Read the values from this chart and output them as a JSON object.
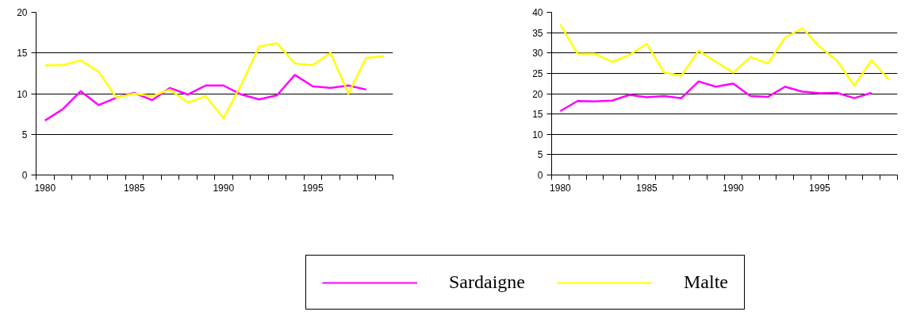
{
  "chart_data": [
    {
      "type": "line",
      "categories": [
        "1980",
        null,
        null,
        null,
        null,
        "1985",
        null,
        null,
        null,
        null,
        "1990",
        null,
        null,
        null,
        null,
        "1995",
        null,
        null,
        null,
        null
      ],
      "ylim": [
        0,
        20
      ],
      "yticks": [
        0,
        5,
        10,
        15,
        20
      ],
      "grid": "y",
      "legend": "bottom",
      "series": [
        {
          "name": "Sardaigne",
          "color": "#ff00ff",
          "values": [
            6.7,
            8.1,
            10.3,
            8.6,
            9.5,
            10.1,
            9.2,
            10.7,
            9.9,
            11.0,
            11.0,
            9.9,
            9.3,
            9.8,
            12.3,
            10.9,
            10.7,
            11.0,
            10.5,
            null
          ]
        },
        {
          "name": "Malte",
          "color": "#ffff00",
          "values": [
            13.5,
            13.5,
            14.1,
            12.7,
            9.5,
            10.0,
            9.7,
            10.5,
            8.9,
            9.7,
            7.0,
            11.1,
            15.8,
            16.2,
            13.7,
            13.5,
            15.0,
            10.0,
            14.4,
            14.6
          ]
        }
      ]
    },
    {
      "type": "line",
      "categories": [
        "1980",
        null,
        null,
        null,
        null,
        "1985",
        null,
        null,
        null,
        null,
        "1990",
        null,
        null,
        null,
        null,
        "1995",
        null,
        null,
        null,
        null
      ],
      "ylim": [
        0,
        40
      ],
      "yticks": [
        0,
        5,
        10,
        15,
        20,
        25,
        30,
        35,
        40
      ],
      "grid": "y",
      "legend": "bottom",
      "series": [
        {
          "name": "Sardaigne",
          "color": "#ff00ff",
          "values": [
            15.7,
            18.2,
            18.1,
            18.3,
            19.7,
            19.1,
            19.4,
            18.9,
            23.0,
            21.7,
            22.5,
            19.4,
            19.2,
            21.7,
            20.5,
            20.1,
            20.2,
            18.9,
            20.2,
            null
          ]
        },
        {
          "name": "Malte",
          "color": "#ffff00",
          "values": [
            37.0,
            29.8,
            29.8,
            27.8,
            29.5,
            32.3,
            25.2,
            24.4,
            30.6,
            27.8,
            25.2,
            29.0,
            27.4,
            33.8,
            36.1,
            31.5,
            28.1,
            22.0,
            28.2,
            23.5
          ]
        }
      ]
    }
  ]
}
